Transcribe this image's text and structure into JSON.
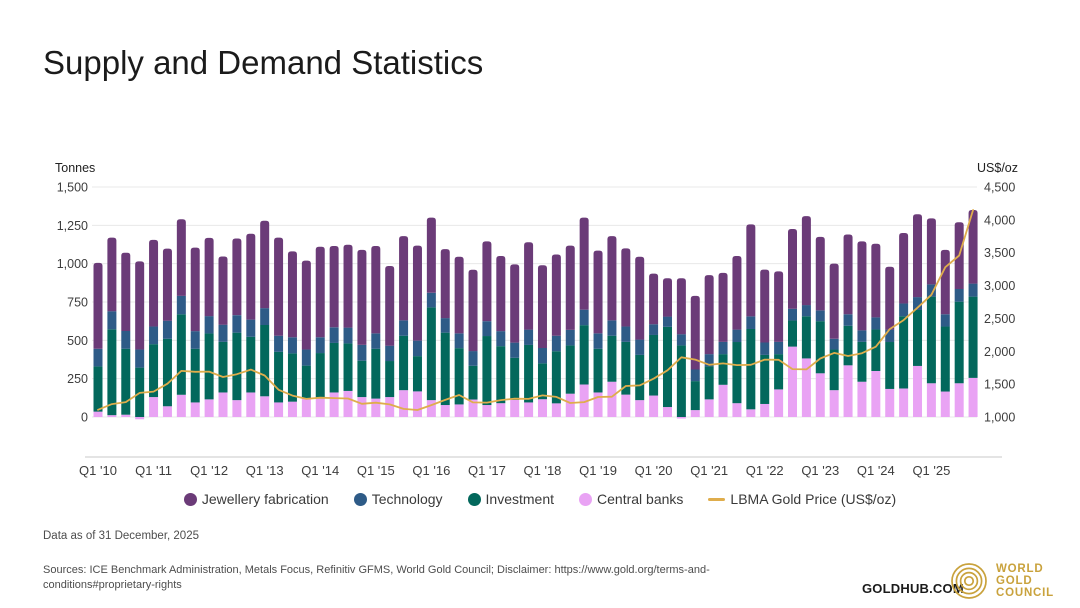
{
  "header": {
    "title": "Supply and Demand Statistics"
  },
  "chart": {
    "left_axis": {
      "label": "Tonnes",
      "ticks": [
        "1,500",
        "1,250",
        "1,000",
        "750",
        "500",
        "250",
        "0"
      ]
    },
    "right_axis": {
      "label": "US$/oz",
      "ticks": [
        "4,500",
        "4,000",
        "3,500",
        "3,000",
        "2,500",
        "2,000",
        "1,500",
        "1,000"
      ]
    },
    "x_ticks": [
      "Q1 '10",
      "Q1 '11",
      "Q1 '12",
      "Q1 '13",
      "Q1 '14",
      "Q1 '15",
      "Q1 '16",
      "Q1 '17",
      "Q1 '18",
      "Q1 '19",
      "Q1 '20",
      "Q1 '21",
      "Q1 '22",
      "Q1 '23",
      "Q1 '24",
      "Q1 '25"
    ]
  },
  "chart_data": {
    "type": "bar",
    "subtype": "stacked-bars-with-line",
    "title": "Supply and Demand Statistics",
    "xlabel": "",
    "ylabel": "Tonnes",
    "ylabel_right": "US$/oz",
    "ylim_left": [
      0,
      1500
    ],
    "ylim_right": [
      1000,
      4500
    ],
    "grid": true,
    "legend_position": "bottom",
    "x": [
      "Q1 '10",
      "Q2 '10",
      "Q3 '10",
      "Q4 '10",
      "Q1 '11",
      "Q2 '11",
      "Q3 '11",
      "Q4 '11",
      "Q1 '12",
      "Q2 '12",
      "Q3 '12",
      "Q4 '12",
      "Q1 '13",
      "Q2 '13",
      "Q3 '13",
      "Q4 '13",
      "Q1 '14",
      "Q2 '14",
      "Q3 '14",
      "Q4 '14",
      "Q1 '15",
      "Q2 '15",
      "Q3 '15",
      "Q4 '15",
      "Q1 '16",
      "Q2 '16",
      "Q3 '16",
      "Q4 '16",
      "Q1 '17",
      "Q2 '17",
      "Q3 '17",
      "Q4 '17",
      "Q1 '18",
      "Q2 '18",
      "Q3 '18",
      "Q4 '18",
      "Q1 '19",
      "Q2 '19",
      "Q3 '19",
      "Q4 '19",
      "Q1 '20",
      "Q2 '20",
      "Q3 '20",
      "Q4 '20",
      "Q1 '21",
      "Q2 '21",
      "Q3 '21",
      "Q4 '21",
      "Q1 '22",
      "Q2 '22",
      "Q3 '22",
      "Q4 '22",
      "Q1 '23",
      "Q2 '23",
      "Q3 '23",
      "Q4 '23",
      "Q1 '24",
      "Q2 '24",
      "Q3 '24",
      "Q4 '24",
      "Q1 '25",
      "Q2 '25",
      "Q3 '25",
      "Q4 '25"
    ],
    "series": [
      {
        "name": "Jewellery fabrication",
        "type": "bar",
        "axis": "left",
        "color": "#6B3B78",
        "values": [
          560,
          480,
          510,
          575,
          565,
          470,
          500,
          545,
          510,
          445,
          500,
          560,
          570,
          640,
          560,
          580,
          590,
          530,
          540,
          620,
          570,
          520,
          550,
          620,
          490,
          450,
          500,
          530,
          520,
          490,
          510,
          570,
          540,
          530,
          550,
          600,
          540,
          550,
          510,
          540,
          330,
          250,
          365,
          480,
          515,
          450,
          480,
          600,
          475,
          460,
          520,
          580,
          480,
          490,
          520,
          580,
          480,
          410,
          460,
          540,
          430,
          420,
          435,
          480
        ]
      },
      {
        "name": "Technology",
        "type": "bar",
        "axis": "left",
        "color": "#2E5B87",
        "values": [
          115,
          118,
          116,
          118,
          115,
          118,
          120,
          115,
          113,
          112,
          114,
          112,
          110,
          105,
          105,
          105,
          103,
          102,
          103,
          103,
          100,
          100,
          100,
          101,
          95,
          95,
          96,
          96,
          97,
          98,
          99,
          100,
          100,
          101,
          101,
          101,
          100,
          100,
          100,
          100,
          70,
          67,
          73,
          76,
          80,
          80,
          81,
          82,
          81,
          80,
          77,
          73,
          70,
          70,
          75,
          75,
          79,
          81,
          83,
          84,
          80,
          80,
          83,
          85
        ]
      },
      {
        "name": "Investment",
        "type": "bar",
        "axis": "left",
        "color": "#03685C",
        "values": [
          295,
          560,
          430,
          322,
          345,
          440,
          525,
          350,
          430,
          330,
          440,
          363,
          465,
          330,
          315,
          215,
          297,
          323,
          310,
          237,
          325,
          235,
          355,
          230,
          605,
          472,
          367,
          220,
          450,
          372,
          275,
          375,
          234,
          340,
          315,
          387,
          285,
          300,
          344,
          295,
          395,
          523,
          467,
          189,
          215,
          200,
          399,
          524,
          320,
          230,
          170,
          275,
          340,
          265,
          258,
          260,
          271,
          306,
          471,
          365,
          565,
          424,
          532,
          530
        ]
      },
      {
        "name": "Central banks",
        "type": "bar",
        "axis": "left",
        "color": "#E9A3F4",
        "values": [
          35,
          12,
          15,
          -15,
          130,
          70,
          145,
          95,
          115,
          160,
          110,
          160,
          135,
          95,
          100,
          120,
          120,
          160,
          170,
          130,
          120,
          130,
          175,
          167,
          110,
          78,
          82,
          114,
          78,
          90,
          111,
          95,
          116,
          89,
          152,
          212,
          160,
          230,
          146,
          110,
          140,
          65,
          -10,
          45,
          115,
          210,
          90,
          50,
          85,
          180,
          459,
          382,
          285,
          175,
          337,
          230,
          300,
          183,
          186,
          333,
          220,
          166,
          220,
          255
        ]
      },
      {
        "name": "LBMA Gold Price (US$/oz)",
        "type": "line",
        "axis": "right",
        "color": "#DFAD4C",
        "values": [
          1110,
          1197,
          1227,
          1367,
          1386,
          1506,
          1702,
          1688,
          1691,
          1609,
          1652,
          1722,
          1631,
          1414,
          1326,
          1276,
          1293,
          1288,
          1282,
          1201,
          1218,
          1192,
          1124,
          1106,
          1181,
          1260,
          1335,
          1222,
          1219,
          1257,
          1278,
          1275,
          1329,
          1306,
          1213,
          1226,
          1304,
          1309,
          1472,
          1481,
          1583,
          1711,
          1909,
          1874,
          1794,
          1816,
          1790,
          1795,
          1874,
          1871,
          1729,
          1725,
          1890,
          1976,
          1928,
          1971,
          2070,
          2338,
          2474,
          2663,
          2860,
          3280,
          3457,
          4150
        ]
      }
    ]
  },
  "legend": {
    "items": [
      {
        "label": "Jewellery fabrication",
        "color": "#6B3B78",
        "marker": "dot"
      },
      {
        "label": "Technology",
        "color": "#2E5B87",
        "marker": "dot"
      },
      {
        "label": "Investment",
        "color": "#03685C",
        "marker": "dot"
      },
      {
        "label": "Central banks",
        "color": "#E9A3F4",
        "marker": "dot"
      },
      {
        "label": "LBMA Gold Price (US$/oz)",
        "color": "#DFAD4C",
        "marker": "line"
      }
    ]
  },
  "footer": {
    "data_as_of": "Data as of 31 December, 2025",
    "sources": "Sources: ICE Benchmark Administration, Metals Focus, Refinitiv GFMS, World Gold Council; Disclaimer: https://www.gold.org/terms-and-conditions#proprietary-rights",
    "goldhub": "GOLDHUB.COM",
    "wgc_lines": [
      "WORLD",
      "GOLD",
      "COUNCIL"
    ],
    "wgc_color": "#C9A23C"
  }
}
